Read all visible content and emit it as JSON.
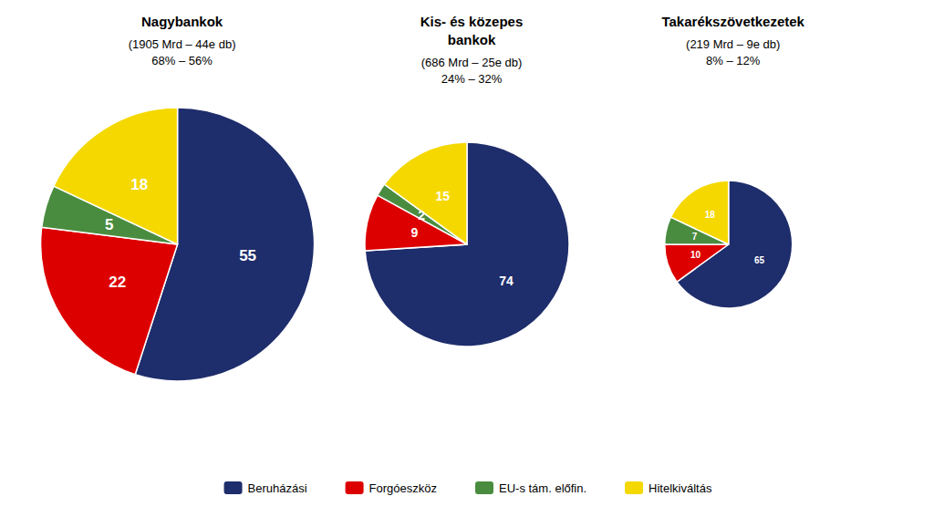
{
  "chart_data": [
    {
      "type": "pie",
      "title": "Nagybankok",
      "subtitle": "(1905 Mrd – 44e db)\n68% – 56%",
      "categories": [
        "Beruházási",
        "Forgóeszköz",
        "EU-s tám. előfin.",
        "Hitelkiváltás"
      ],
      "values": [
        55,
        22,
        5,
        18
      ],
      "colors": [
        "#1e2d6b",
        "#dd0000",
        "#4a8c3f",
        "#f5d800"
      ],
      "data_labels": true,
      "legend": "bottom"
    },
    {
      "type": "pie",
      "title": "Kis- és közepes\nbankok",
      "subtitle": "(686 Mrd – 25e db)\n24% – 32%",
      "categories": [
        "Beruházási",
        "Forgóeszköz",
        "EU-s tám. előfin.",
        "Hitelkiváltás"
      ],
      "values": [
        74,
        9,
        2,
        15
      ],
      "colors": [
        "#1e2d6b",
        "#dd0000",
        "#4a8c3f",
        "#f5d800"
      ],
      "data_labels": true,
      "legend": "bottom"
    },
    {
      "type": "pie",
      "title": "Takarékszövetkezetek",
      "subtitle": "(219 Mrd – 9e db)\n8% – 12%",
      "categories": [
        "Beruházási",
        "Forgóeszköz",
        "EU-s tám. előfin.",
        "Hitelkiváltás"
      ],
      "values": [
        65,
        10,
        7,
        18
      ],
      "colors": [
        "#1e2d6b",
        "#dd0000",
        "#4a8c3f",
        "#f5d800"
      ],
      "data_labels": true,
      "legend": "bottom"
    }
  ]
}
